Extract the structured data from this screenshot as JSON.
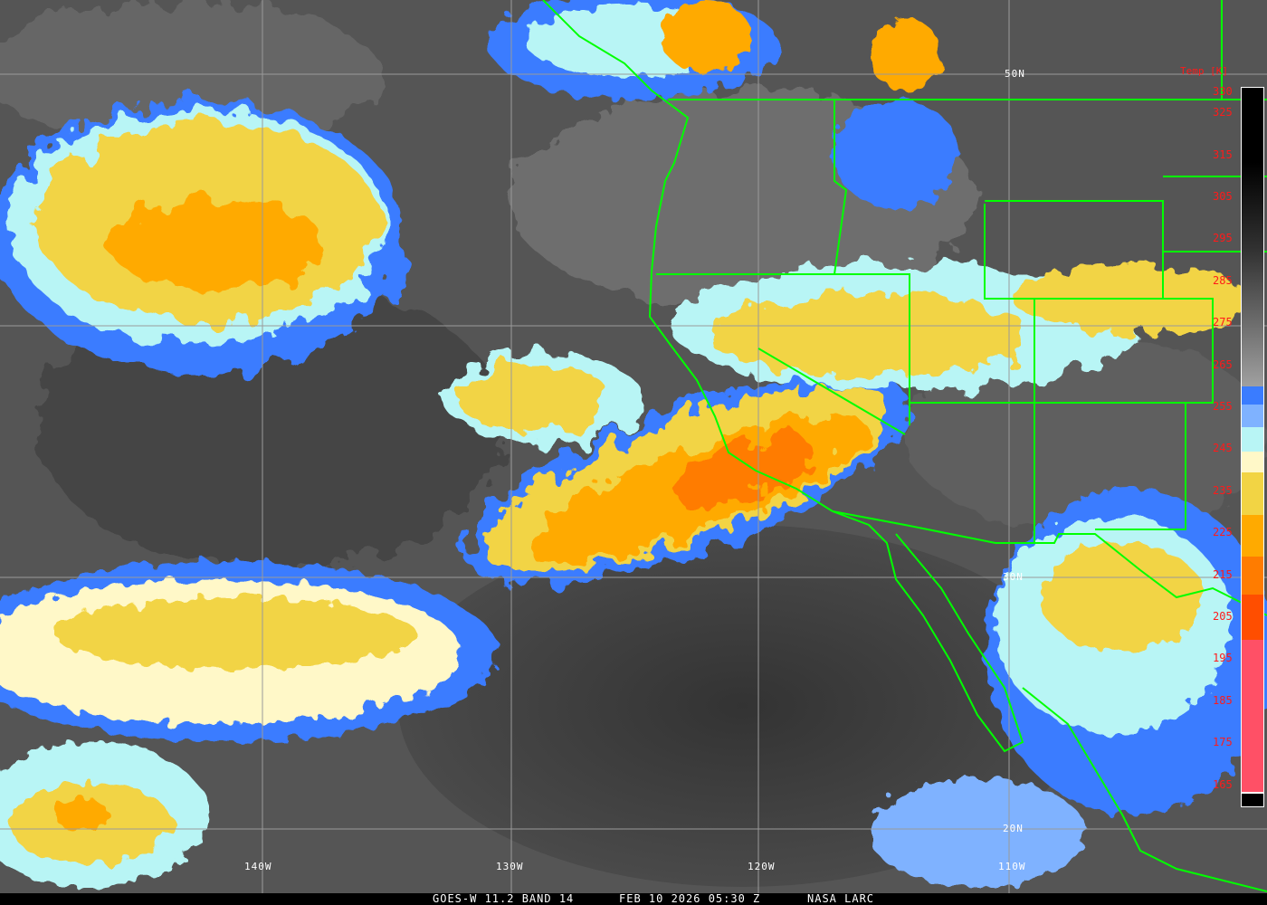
{
  "caption": {
    "product": "GOES-W 11.2 BAND 14",
    "datetime": "FEB 10 2026 05:30 Z",
    "credit": "NASA LARC"
  },
  "grid": {
    "latitudes": [
      "50N",
      "30N",
      "20N"
    ],
    "longitudes": [
      "140W",
      "130W",
      "120W",
      "110W"
    ]
  },
  "colorbar": {
    "title": "Temp [K]",
    "ticks": [
      "330",
      "325",
      "315",
      "305",
      "295",
      "285",
      "275",
      "265",
      "255",
      "245",
      "235",
      "225",
      "215",
      "205",
      "195",
      "185",
      "175",
      "165"
    ],
    "colors": {
      "warm_gray_top": "#000000",
      "warm_gray_bottom": "#a0a0a0",
      "blue": "#3a7cff",
      "light_blue": "#7fb2ff",
      "pale_cyan": "#b8f5f5",
      "cream": "#fff8c8",
      "yellow": "#f2d444",
      "orange": "#ffaa00",
      "dark_orange": "#ff7c00",
      "red_orange": "#ff4e00",
      "pink": "#ff5066",
      "coldest": "#000000"
    }
  },
  "overlay_color": "#00ff00"
}
